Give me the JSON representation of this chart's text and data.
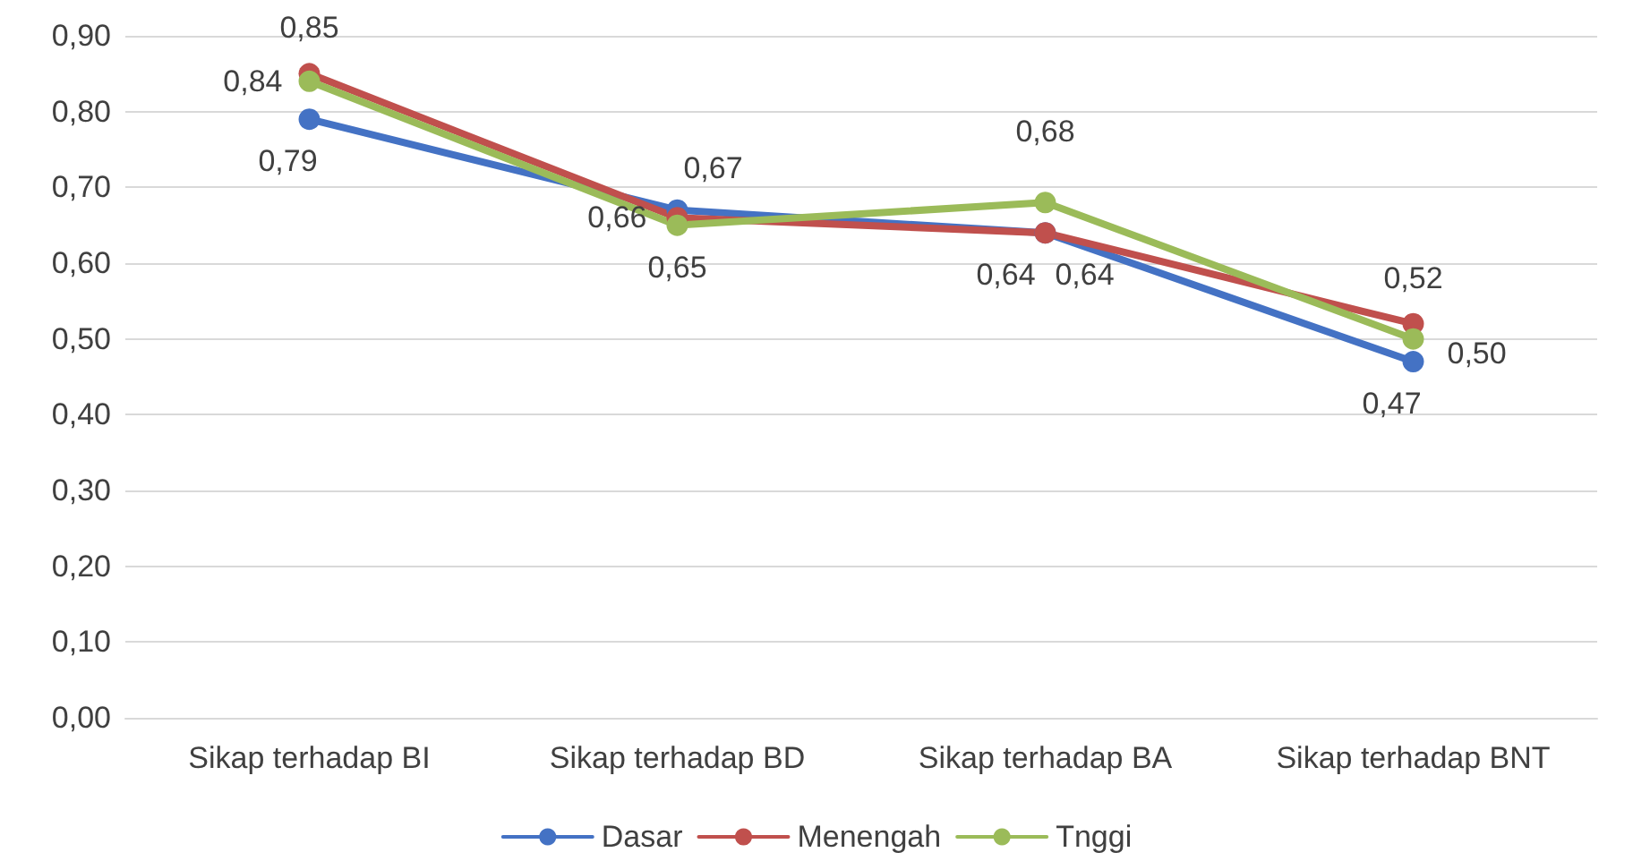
{
  "chart_data": {
    "type": "line",
    "categories": [
      "Sikap terhadap BI",
      "Sikap terhadap BD",
      "Sikap terhadap BA",
      "Sikap terhadap BNT"
    ],
    "series": [
      {
        "name": "Dasar",
        "color": "#4472c4",
        "values": [
          0.79,
          0.67,
          0.64,
          0.47
        ],
        "value_labels": [
          "0,79",
          "0,67",
          "0,64",
          "0,47"
        ]
      },
      {
        "name": "Menengah",
        "color": "#c0504d",
        "values": [
          0.85,
          0.66,
          0.64,
          0.52
        ],
        "value_labels": [
          "0,85",
          "0,66",
          "0,64",
          "0,52"
        ]
      },
      {
        "name": "Tnggi",
        "color": "#9bbb59",
        "values": [
          0.84,
          0.65,
          0.68,
          0.5
        ],
        "value_labels": [
          "0,84",
          "0,65",
          "0,68",
          "0,50"
        ]
      }
    ],
    "ylim": [
      0,
      0.9
    ],
    "yticks": [
      {
        "value": 0,
        "label": "0,00"
      },
      {
        "value": 0.1,
        "label": "0,10"
      },
      {
        "value": 0.2,
        "label": "0,20"
      },
      {
        "value": 0.3,
        "label": "0,30"
      },
      {
        "value": 0.4,
        "label": "0,40"
      },
      {
        "value": 0.5,
        "label": "0,50"
      },
      {
        "value": 0.6,
        "label": "0,60"
      },
      {
        "value": 0.7,
        "label": "0,70"
      },
      {
        "value": 0.8,
        "label": "0,80"
      },
      {
        "value": 0.9,
        "label": "0,90"
      }
    ],
    "grid": "y",
    "legend": "bottom",
    "marker": "circle",
    "line_style": "solid"
  }
}
